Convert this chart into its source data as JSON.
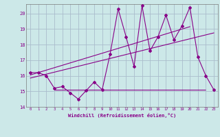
{
  "xlabel": "Windchill (Refroidissement éolien,°C)",
  "background_color": "#cce8e8",
  "grid_color": "#aabccc",
  "line_color": "#880088",
  "xlim": [
    -0.5,
    23.5
  ],
  "ylim": [
    14,
    20.6
  ],
  "yticks": [
    14,
    15,
    16,
    17,
    18,
    19,
    20
  ],
  "xticks": [
    0,
    1,
    2,
    3,
    4,
    5,
    6,
    7,
    8,
    9,
    10,
    11,
    12,
    13,
    14,
    15,
    16,
    17,
    18,
    19,
    20,
    21,
    22,
    23
  ],
  "hours": [
    0,
    1,
    2,
    3,
    4,
    5,
    6,
    7,
    8,
    9,
    10,
    11,
    12,
    13,
    14,
    15,
    16,
    17,
    18,
    19,
    20,
    21,
    22,
    23
  ],
  "windchill": [
    16.2,
    16.2,
    16.0,
    15.2,
    15.3,
    14.9,
    14.5,
    15.05,
    15.6,
    15.1,
    17.4,
    20.3,
    18.5,
    16.6,
    20.5,
    17.6,
    18.5,
    19.9,
    18.3,
    19.2,
    20.4,
    17.2,
    16.0,
    15.1
  ],
  "trend1_x": [
    0,
    20
  ],
  "trend1_y": [
    16.05,
    19.15
  ],
  "trend2_x": [
    0,
    23
  ],
  "trend2_y": [
    15.85,
    18.75
  ],
  "hline_y": 15.1,
  "hline_x_start": 3,
  "hline_x_end": 22
}
